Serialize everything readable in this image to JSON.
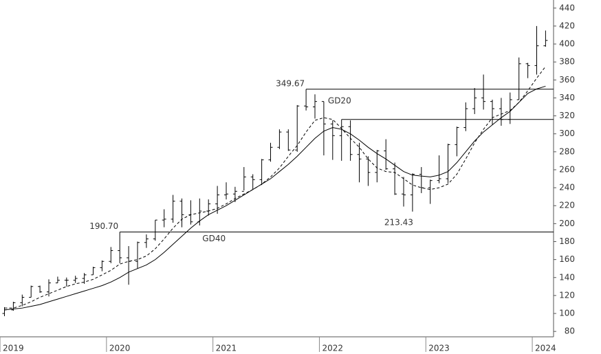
{
  "chart_data": {
    "type": "ohlc",
    "categories": [
      "2019",
      null,
      null,
      null,
      null,
      null,
      null,
      null,
      null,
      null,
      null,
      null,
      "2020",
      null,
      null,
      null,
      null,
      null,
      null,
      null,
      null,
      null,
      null,
      null,
      "2021",
      null,
      null,
      null,
      null,
      null,
      null,
      null,
      null,
      null,
      null,
      null,
      "2022",
      null,
      null,
      null,
      null,
      null,
      null,
      null,
      null,
      null,
      null,
      null,
      "2023",
      null,
      null,
      null,
      null,
      null,
      null,
      null,
      null,
      null,
      null,
      null,
      "2024",
      null
    ],
    "open": [
      100,
      104,
      112,
      118,
      130,
      124,
      134,
      137,
      137,
      139,
      143,
      151,
      158,
      170,
      162,
      158,
      179,
      183,
      204,
      205,
      225,
      210,
      202,
      214,
      222,
      232,
      233,
      236,
      252,
      249,
      271,
      285,
      302,
      282,
      331,
      330,
      336,
      311,
      298,
      308,
      277,
      272,
      257,
      281,
      261,
      233,
      232,
      255,
      240,
      248,
      250,
      288,
      307,
      328,
      340,
      336,
      328,
      316,
      338,
      378,
      376,
      398
    ],
    "high": [
      107,
      113,
      121,
      131,
      131,
      138,
      141,
      140,
      142,
      145,
      152,
      159,
      174,
      190.7,
      175,
      180,
      188,
      204,
      216,
      232,
      228,
      226,
      228,
      227,
      242,
      246,
      241,
      263,
      255,
      272,
      290,
      305,
      305,
      332,
      349.67,
      344,
      336,
      315,
      316,
      315,
      290,
      275,
      282,
      294,
      268,
      252,
      256,
      263,
      249,
      276,
      289,
      308,
      335,
      351,
      366,
      338,
      340,
      346,
      385,
      379,
      420,
      415
    ],
    "low": [
      97,
      103,
      108,
      118,
      123,
      119,
      134,
      130,
      134,
      133,
      143,
      147,
      156,
      156,
      132,
      150,
      173,
      181,
      196,
      201,
      196,
      199,
      198,
      209,
      211,
      227,
      224,
      237,
      238,
      243,
      269,
      283,
      281,
      280,
      326,
      317,
      276,
      271,
      270,
      270,
      246,
      242,
      246,
      260,
      232,
      219,
      213.43,
      234,
      222,
      245,
      245,
      275,
      303,
      322,
      327,
      310,
      309,
      311,
      338,
      362,
      366,
      397
    ],
    "close": [
      104,
      112,
      118,
      130,
      124,
      134,
      137,
      137,
      139,
      143,
      151,
      158,
      170,
      162,
      158,
      179,
      183,
      204,
      205,
      225,
      210,
      202,
      214,
      222,
      232,
      233,
      236,
      252,
      249,
      271,
      285,
      302,
      282,
      331,
      330,
      336,
      311,
      298,
      308,
      277,
      272,
      257,
      281,
      261,
      233,
      232,
      255,
      240,
      248,
      250,
      288,
      307,
      328,
      340,
      336,
      328,
      316,
      338,
      378,
      376,
      398,
      404
    ],
    "series": [
      {
        "name": "GD20",
        "color": "#000000",
        "dashed": true,
        "values": [
          106,
          106,
          109,
          113,
          118,
          122,
          126,
          130,
          133,
          135,
          138,
          143,
          148,
          155,
          158,
          160,
          164,
          172,
          183,
          195,
          205,
          210,
          212,
          214,
          217,
          222,
          228,
          233,
          238,
          244,
          252,
          262,
          275,
          287,
          302,
          315,
          318,
          316,
          306,
          295,
          285,
          272,
          262,
          258,
          257,
          250,
          243,
          240,
          238,
          240,
          244,
          255,
          272,
          290,
          305,
          318,
          322,
          326,
          335,
          348,
          362,
          375
        ]
      },
      {
        "name": "GD40",
        "color": "#000000",
        "dashed": false,
        "values": [
          104,
          105,
          106,
          108,
          110,
          113,
          116,
          119,
          122,
          125,
          128,
          131,
          135,
          140,
          146,
          150,
          154,
          160,
          168,
          177,
          186,
          195,
          203,
          210,
          215,
          220,
          226,
          232,
          238,
          244,
          250,
          258,
          266,
          275,
          285,
          295,
          303,
          307,
          305,
          300,
          293,
          285,
          278,
          272,
          265,
          258,
          254,
          253,
          252,
          254,
          258,
          268,
          280,
          292,
          302,
          310,
          318,
          325,
          335,
          345,
          350,
          353
        ]
      }
    ],
    "hlines": [
      {
        "value": 349.67,
        "label": "349.67"
      },
      316,
      {
        "value": 190.7,
        "label": "190.70"
      }
    ],
    "ylim": [
      74,
      449
    ],
    "yticks": [
      80,
      100,
      120,
      140,
      160,
      180,
      200,
      220,
      240,
      260,
      280,
      300,
      320,
      340,
      360,
      380,
      400,
      420,
      440
    ],
    "color": "#000000"
  }
}
